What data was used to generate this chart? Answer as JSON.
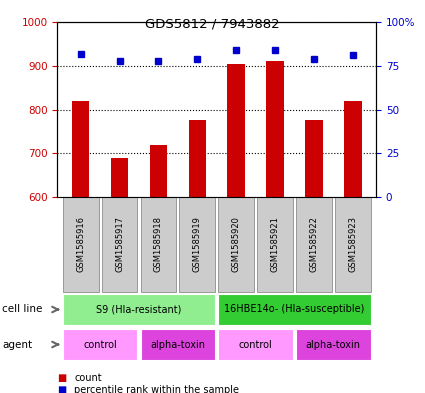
{
  "title": "GDS5812 / 7943882",
  "samples": [
    "GSM1585916",
    "GSM1585917",
    "GSM1585918",
    "GSM1585919",
    "GSM1585920",
    "GSM1585921",
    "GSM1585922",
    "GSM1585923"
  ],
  "counts": [
    820,
    690,
    720,
    775,
    905,
    910,
    775,
    820
  ],
  "percentiles": [
    82,
    78,
    78,
    79,
    84,
    84,
    79,
    81
  ],
  "ylim_left": [
    600,
    1000
  ],
  "ylim_right": [
    0,
    100
  ],
  "yticks_left": [
    600,
    700,
    800,
    900,
    1000
  ],
  "yticks_right": [
    0,
    25,
    50,
    75,
    100
  ],
  "ytick_labels_right": [
    "0",
    "25",
    "50",
    "75",
    "100%"
  ],
  "bar_color": "#CC0000",
  "dot_color": "#0000CC",
  "bar_width": 0.45,
  "cell_line_groups": [
    {
      "label": "S9 (Hla-resistant)",
      "start": 0,
      "end": 4,
      "color": "#90EE90"
    },
    {
      "label": "16HBE14o- (Hla-susceptible)",
      "start": 4,
      "end": 8,
      "color": "#33CC33"
    }
  ],
  "agent_groups": [
    {
      "label": "control",
      "start": 0,
      "end": 2,
      "color": "#FF99FF"
    },
    {
      "label": "alpha-toxin",
      "start": 2,
      "end": 4,
      "color": "#DD44DD"
    },
    {
      "label": "control",
      "start": 4,
      "end": 6,
      "color": "#FF99FF"
    },
    {
      "label": "alpha-toxin",
      "start": 6,
      "end": 8,
      "color": "#DD44DD"
    }
  ],
  "legend_count_color": "#CC0000",
  "legend_dot_color": "#0000CC",
  "cell_line_label": "cell line",
  "agent_label": "agent",
  "legend_count_text": "count",
  "legend_percentile_text": "percentile rank within the sample",
  "sample_box_color": "#CCCCCC",
  "sample_box_edge": "#999999",
  "grid_color": "#000000",
  "spine_color": "#000000"
}
